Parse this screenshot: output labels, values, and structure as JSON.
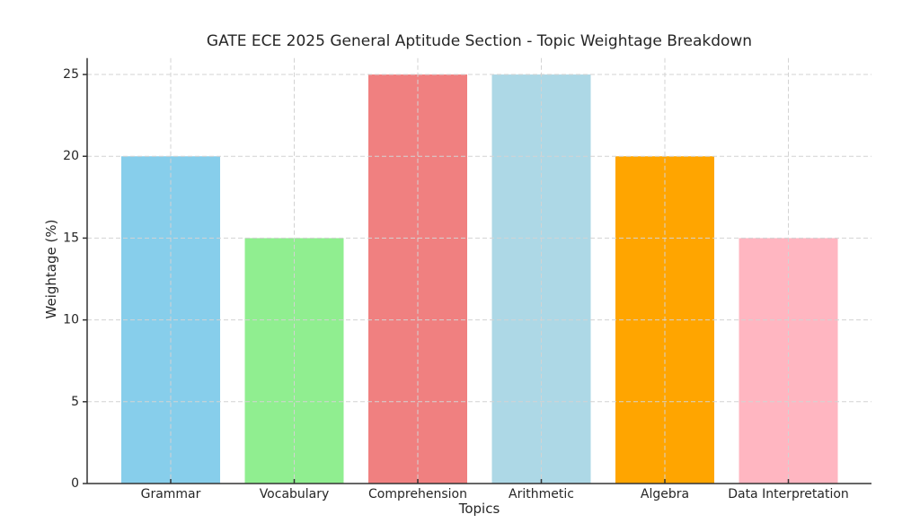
{
  "figure": {
    "background": "#ffffff"
  },
  "chart_data": {
    "type": "bar",
    "title": "GATE ECE 2025 General Aptitude Section - Topic Weightage Breakdown",
    "xlabel": "Topics",
    "ylabel": "Weightage (%)",
    "categories": [
      "Grammar",
      "Vocabulary",
      "Comprehension",
      "Arithmetic",
      "Algebra",
      "Data Interpretation"
    ],
    "values": [
      20,
      15,
      25,
      25,
      20,
      15
    ],
    "bar_colors": [
      "#87CEEB",
      "#90EE90",
      "#F08080",
      "#ADD8E6",
      "#FFA500",
      "#FFB6C1"
    ],
    "yticks": [
      0,
      5,
      10,
      15,
      20,
      25
    ],
    "ylim": [
      0,
      26
    ],
    "grid": "dashed both axes, drawn above bars",
    "legend_position": "none"
  },
  "style": {
    "grid_color": "#d3d3d3",
    "spine_color": "#333333",
    "text_color": "#262626"
  }
}
